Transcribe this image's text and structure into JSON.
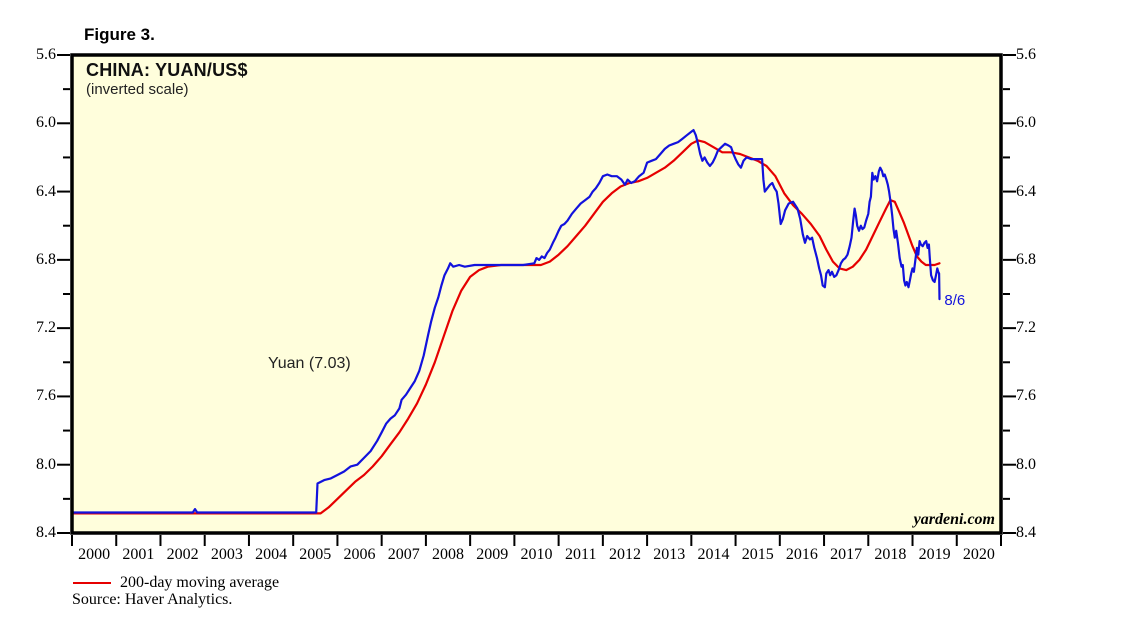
{
  "figure_label": "Figure 3.",
  "legend": {
    "label": "200-day moving average",
    "color": "#e60000"
  },
  "source": "Source: Haver Analytics.",
  "chart_data": {
    "type": "line",
    "title": "CHINA: YUAN/US$",
    "subtitle": "(inverted scale)",
    "watermark": "yardeni.com",
    "grid": false,
    "legend_position": "bottom-left",
    "inverted_y_axis": true,
    "plot_bg": "#fffedc",
    "frame_color": "#000000",
    "x_range": [
      2000,
      2021
    ],
    "y_range": [
      5.6,
      8.4
    ],
    "y_minor_step": 0.2,
    "y_tick_labels": [
      "5.6",
      "6.0",
      "6.4",
      "6.8",
      "7.2",
      "7.6",
      "8.0",
      "8.4"
    ],
    "x_tick_labels": [
      "2000",
      "2001",
      "2002",
      "2003",
      "2004",
      "2005",
      "2006",
      "2007",
      "2008",
      "2009",
      "2010",
      "2011",
      "2012",
      "2013",
      "2014",
      "2015",
      "2016",
      "2017",
      "2018",
      "2019",
      "2020"
    ],
    "annotations": [
      {
        "text": "Yuan (7.03)",
        "at": [
          2004.43,
          7.36
        ],
        "color": "#222222"
      },
      {
        "text": "8/6",
        "at": [
          2019.72,
          6.99
        ],
        "color": "#1212dd"
      }
    ],
    "series": [
      {
        "name": "200-day moving average",
        "color": "#e60000",
        "width": 2.2,
        "points": [
          [
            2000,
            8.285
          ],
          [
            2005.62,
            8.285
          ],
          [
            2005.8,
            8.25
          ],
          [
            2006,
            8.2
          ],
          [
            2006.2,
            8.15
          ],
          [
            2006.4,
            8.1
          ],
          [
            2006.6,
            8.06
          ],
          [
            2006.8,
            8.01
          ],
          [
            2007,
            7.95
          ],
          [
            2007.2,
            7.88
          ],
          [
            2007.4,
            7.81
          ],
          [
            2007.6,
            7.73
          ],
          [
            2007.8,
            7.64
          ],
          [
            2008,
            7.53
          ],
          [
            2008.2,
            7.4
          ],
          [
            2008.4,
            7.25
          ],
          [
            2008.6,
            7.1
          ],
          [
            2008.8,
            6.98
          ],
          [
            2009,
            6.9
          ],
          [
            2009.2,
            6.86
          ],
          [
            2009.4,
            6.84
          ],
          [
            2009.7,
            6.83
          ],
          [
            2010,
            6.83
          ],
          [
            2010.3,
            6.83
          ],
          [
            2010.6,
            6.83
          ],
          [
            2010.8,
            6.81
          ],
          [
            2011,
            6.77
          ],
          [
            2011.2,
            6.72
          ],
          [
            2011.4,
            6.66
          ],
          [
            2011.6,
            6.6
          ],
          [
            2011.8,
            6.53
          ],
          [
            2012,
            6.46
          ],
          [
            2012.2,
            6.41
          ],
          [
            2012.4,
            6.37
          ],
          [
            2012.6,
            6.35
          ],
          [
            2012.8,
            6.34
          ],
          [
            2013,
            6.32
          ],
          [
            2013.2,
            6.29
          ],
          [
            2013.4,
            6.26
          ],
          [
            2013.6,
            6.22
          ],
          [
            2013.8,
            6.17
          ],
          [
            2014,
            6.12
          ],
          [
            2014.15,
            6.1
          ],
          [
            2014.3,
            6.11
          ],
          [
            2014.5,
            6.14
          ],
          [
            2014.7,
            6.17
          ],
          [
            2014.9,
            6.17
          ],
          [
            2015.1,
            6.18
          ],
          [
            2015.3,
            6.2
          ],
          [
            2015.5,
            6.22
          ],
          [
            2015.7,
            6.25
          ],
          [
            2015.9,
            6.31
          ],
          [
            2016.1,
            6.41
          ],
          [
            2016.3,
            6.48
          ],
          [
            2016.5,
            6.53
          ],
          [
            2016.7,
            6.59
          ],
          [
            2016.9,
            6.66
          ],
          [
            2017.05,
            6.74
          ],
          [
            2017.2,
            6.81
          ],
          [
            2017.35,
            6.85
          ],
          [
            2017.5,
            6.86
          ],
          [
            2017.65,
            6.84
          ],
          [
            2017.8,
            6.8
          ],
          [
            2017.95,
            6.74
          ],
          [
            2018.1,
            6.66
          ],
          [
            2018.25,
            6.58
          ],
          [
            2018.4,
            6.5
          ],
          [
            2018.5,
            6.45
          ],
          [
            2018.6,
            6.46
          ],
          [
            2018.7,
            6.52
          ],
          [
            2018.8,
            6.58
          ],
          [
            2018.9,
            6.65
          ],
          [
            2019,
            6.72
          ],
          [
            2019.1,
            6.78
          ],
          [
            2019.2,
            6.81
          ],
          [
            2019.3,
            6.83
          ],
          [
            2019.4,
            6.83
          ],
          [
            2019.5,
            6.83
          ],
          [
            2019.61,
            6.82
          ]
        ]
      },
      {
        "name": "Yuan",
        "color": "#1212dd",
        "width": 2.2,
        "last_value": 7.03,
        "last_date_label": "8/6",
        "points": [
          [
            2000,
            8.28
          ],
          [
            2001.5,
            8.28
          ],
          [
            2002.73,
            8.28
          ],
          [
            2002.78,
            8.26
          ],
          [
            2002.83,
            8.28
          ],
          [
            2004,
            8.28
          ],
          [
            2005.52,
            8.28
          ],
          [
            2005.55,
            8.11
          ],
          [
            2005.7,
            8.09
          ],
          [
            2005.85,
            8.08
          ],
          [
            2006,
            8.06
          ],
          [
            2006.15,
            8.04
          ],
          [
            2006.3,
            8.01
          ],
          [
            2006.45,
            8.0
          ],
          [
            2006.6,
            7.96
          ],
          [
            2006.75,
            7.92
          ],
          [
            2006.9,
            7.86
          ],
          [
            2007,
            7.81
          ],
          [
            2007.1,
            7.76
          ],
          [
            2007.2,
            7.73
          ],
          [
            2007.3,
            7.71
          ],
          [
            2007.4,
            7.67
          ],
          [
            2007.45,
            7.62
          ],
          [
            2007.55,
            7.59
          ],
          [
            2007.65,
            7.55
          ],
          [
            2007.75,
            7.51
          ],
          [
            2007.85,
            7.45
          ],
          [
            2007.95,
            7.36
          ],
          [
            2008.05,
            7.24
          ],
          [
            2008.12,
            7.16
          ],
          [
            2008.2,
            7.08
          ],
          [
            2008.28,
            7.02
          ],
          [
            2008.35,
            6.95
          ],
          [
            2008.42,
            6.89
          ],
          [
            2008.5,
            6.85
          ],
          [
            2008.55,
            6.82
          ],
          [
            2008.62,
            6.84
          ],
          [
            2008.75,
            6.83
          ],
          [
            2008.88,
            6.84
          ],
          [
            2009.1,
            6.83
          ],
          [
            2009.5,
            6.83
          ],
          [
            2009.9,
            6.83
          ],
          [
            2010.2,
            6.83
          ],
          [
            2010.45,
            6.82
          ],
          [
            2010.5,
            6.79
          ],
          [
            2010.56,
            6.8
          ],
          [
            2010.62,
            6.78
          ],
          [
            2010.68,
            6.79
          ],
          [
            2010.74,
            6.76
          ],
          [
            2010.8,
            6.74
          ],
          [
            2010.87,
            6.7
          ],
          [
            2010.93,
            6.67
          ],
          [
            2011,
            6.63
          ],
          [
            2011.06,
            6.6
          ],
          [
            2011.13,
            6.59
          ],
          [
            2011.2,
            6.57
          ],
          [
            2011.3,
            6.53
          ],
          [
            2011.4,
            6.5
          ],
          [
            2011.5,
            6.47
          ],
          [
            2011.6,
            6.45
          ],
          [
            2011.7,
            6.43
          ],
          [
            2011.77,
            6.4
          ],
          [
            2011.84,
            6.38
          ],
          [
            2011.92,
            6.35
          ],
          [
            2012,
            6.31
          ],
          [
            2012.1,
            6.3
          ],
          [
            2012.2,
            6.31
          ],
          [
            2012.32,
            6.31
          ],
          [
            2012.42,
            6.33
          ],
          [
            2012.5,
            6.36
          ],
          [
            2012.56,
            6.33
          ],
          [
            2012.64,
            6.35
          ],
          [
            2012.72,
            6.34
          ],
          [
            2012.82,
            6.31
          ],
          [
            2012.92,
            6.29
          ],
          [
            2013,
            6.23
          ],
          [
            2013.1,
            6.22
          ],
          [
            2013.2,
            6.21
          ],
          [
            2013.3,
            6.18
          ],
          [
            2013.4,
            6.15
          ],
          [
            2013.5,
            6.13
          ],
          [
            2013.6,
            6.12
          ],
          [
            2013.7,
            6.11
          ],
          [
            2013.8,
            6.09
          ],
          [
            2013.9,
            6.07
          ],
          [
            2014,
            6.05
          ],
          [
            2014.05,
            6.04
          ],
          [
            2014.1,
            6.07
          ],
          [
            2014.15,
            6.12
          ],
          [
            2014.2,
            6.18
          ],
          [
            2014.25,
            6.22
          ],
          [
            2014.3,
            6.2
          ],
          [
            2014.36,
            6.23
          ],
          [
            2014.42,
            6.25
          ],
          [
            2014.48,
            6.23
          ],
          [
            2014.54,
            6.2
          ],
          [
            2014.6,
            6.16
          ],
          [
            2014.68,
            6.14
          ],
          [
            2014.76,
            6.12
          ],
          [
            2014.84,
            6.13
          ],
          [
            2014.9,
            6.14
          ],
          [
            2014.95,
            6.18
          ],
          [
            2015,
            6.21
          ],
          [
            2015.06,
            6.24
          ],
          [
            2015.12,
            6.26
          ],
          [
            2015.18,
            6.22
          ],
          [
            2015.25,
            6.2
          ],
          [
            2015.35,
            6.21
          ],
          [
            2015.45,
            6.21
          ],
          [
            2015.55,
            6.21
          ],
          [
            2015.6,
            6.21
          ],
          [
            2015.63,
            6.33
          ],
          [
            2015.66,
            6.4
          ],
          [
            2015.72,
            6.38
          ],
          [
            2015.78,
            6.36
          ],
          [
            2015.83,
            6.35
          ],
          [
            2015.88,
            6.38
          ],
          [
            2015.93,
            6.4
          ],
          [
            2015.97,
            6.47
          ],
          [
            2016.02,
            6.59
          ],
          [
            2016.07,
            6.56
          ],
          [
            2016.12,
            6.51
          ],
          [
            2016.2,
            6.47
          ],
          [
            2016.3,
            6.46
          ],
          [
            2016.4,
            6.5
          ],
          [
            2016.46,
            6.56
          ],
          [
            2016.52,
            6.65
          ],
          [
            2016.57,
            6.7
          ],
          [
            2016.62,
            6.66
          ],
          [
            2016.68,
            6.68
          ],
          [
            2016.73,
            6.67
          ],
          [
            2016.78,
            6.73
          ],
          [
            2016.84,
            6.79
          ],
          [
            2016.89,
            6.85
          ],
          [
            2016.93,
            6.89
          ],
          [
            2016.97,
            6.95
          ],
          [
            2017.02,
            6.96
          ],
          [
            2017.05,
            6.88
          ],
          [
            2017.1,
            6.86
          ],
          [
            2017.14,
            6.89
          ],
          [
            2017.18,
            6.87
          ],
          [
            2017.23,
            6.9
          ],
          [
            2017.28,
            6.89
          ],
          [
            2017.33,
            6.86
          ],
          [
            2017.38,
            6.82
          ],
          [
            2017.43,
            6.8
          ],
          [
            2017.48,
            6.79
          ],
          [
            2017.53,
            6.77
          ],
          [
            2017.58,
            6.72
          ],
          [
            2017.62,
            6.67
          ],
          [
            2017.66,
            6.57
          ],
          [
            2017.69,
            6.5
          ],
          [
            2017.72,
            6.54
          ],
          [
            2017.75,
            6.6
          ],
          [
            2017.79,
            6.63
          ],
          [
            2017.83,
            6.6
          ],
          [
            2017.87,
            6.62
          ],
          [
            2017.91,
            6.61
          ],
          [
            2017.95,
            6.57
          ],
          [
            2018,
            6.53
          ],
          [
            2018.03,
            6.46
          ],
          [
            2018.06,
            6.43
          ],
          [
            2018.09,
            6.29
          ],
          [
            2018.12,
            6.33
          ],
          [
            2018.16,
            6.31
          ],
          [
            2018.2,
            6.34
          ],
          [
            2018.24,
            6.28
          ],
          [
            2018.27,
            6.26
          ],
          [
            2018.31,
            6.28
          ],
          [
            2018.34,
            6.31
          ],
          [
            2018.37,
            6.3
          ],
          [
            2018.41,
            6.33
          ],
          [
            2018.44,
            6.36
          ],
          [
            2018.47,
            6.4
          ],
          [
            2018.51,
            6.47
          ],
          [
            2018.54,
            6.54
          ],
          [
            2018.57,
            6.62
          ],
          [
            2018.6,
            6.67
          ],
          [
            2018.63,
            6.63
          ],
          [
            2018.67,
            6.7
          ],
          [
            2018.71,
            6.79
          ],
          [
            2018.75,
            6.84
          ],
          [
            2018.78,
            6.83
          ],
          [
            2018.81,
            6.92
          ],
          [
            2018.84,
            6.95
          ],
          [
            2018.87,
            6.93
          ],
          [
            2018.91,
            6.96
          ],
          [
            2018.94,
            6.92
          ],
          [
            2018.97,
            6.88
          ],
          [
            2019,
            6.85
          ],
          [
            2019.03,
            6.87
          ],
          [
            2019.07,
            6.79
          ],
          [
            2019.1,
            6.73
          ],
          [
            2019.13,
            6.77
          ],
          [
            2019.16,
            6.69
          ],
          [
            2019.19,
            6.71
          ],
          [
            2019.23,
            6.72
          ],
          [
            2019.27,
            6.7
          ],
          [
            2019.31,
            6.69
          ],
          [
            2019.34,
            6.73
          ],
          [
            2019.37,
            6.71
          ],
          [
            2019.39,
            6.79
          ],
          [
            2019.42,
            6.89
          ],
          [
            2019.46,
            6.92
          ],
          [
            2019.5,
            6.93
          ],
          [
            2019.53,
            6.89
          ],
          [
            2019.56,
            6.85
          ],
          [
            2019.58,
            6.87
          ],
          [
            2019.6,
            6.88
          ],
          [
            2019.61,
            7.03
          ]
        ]
      }
    ]
  }
}
